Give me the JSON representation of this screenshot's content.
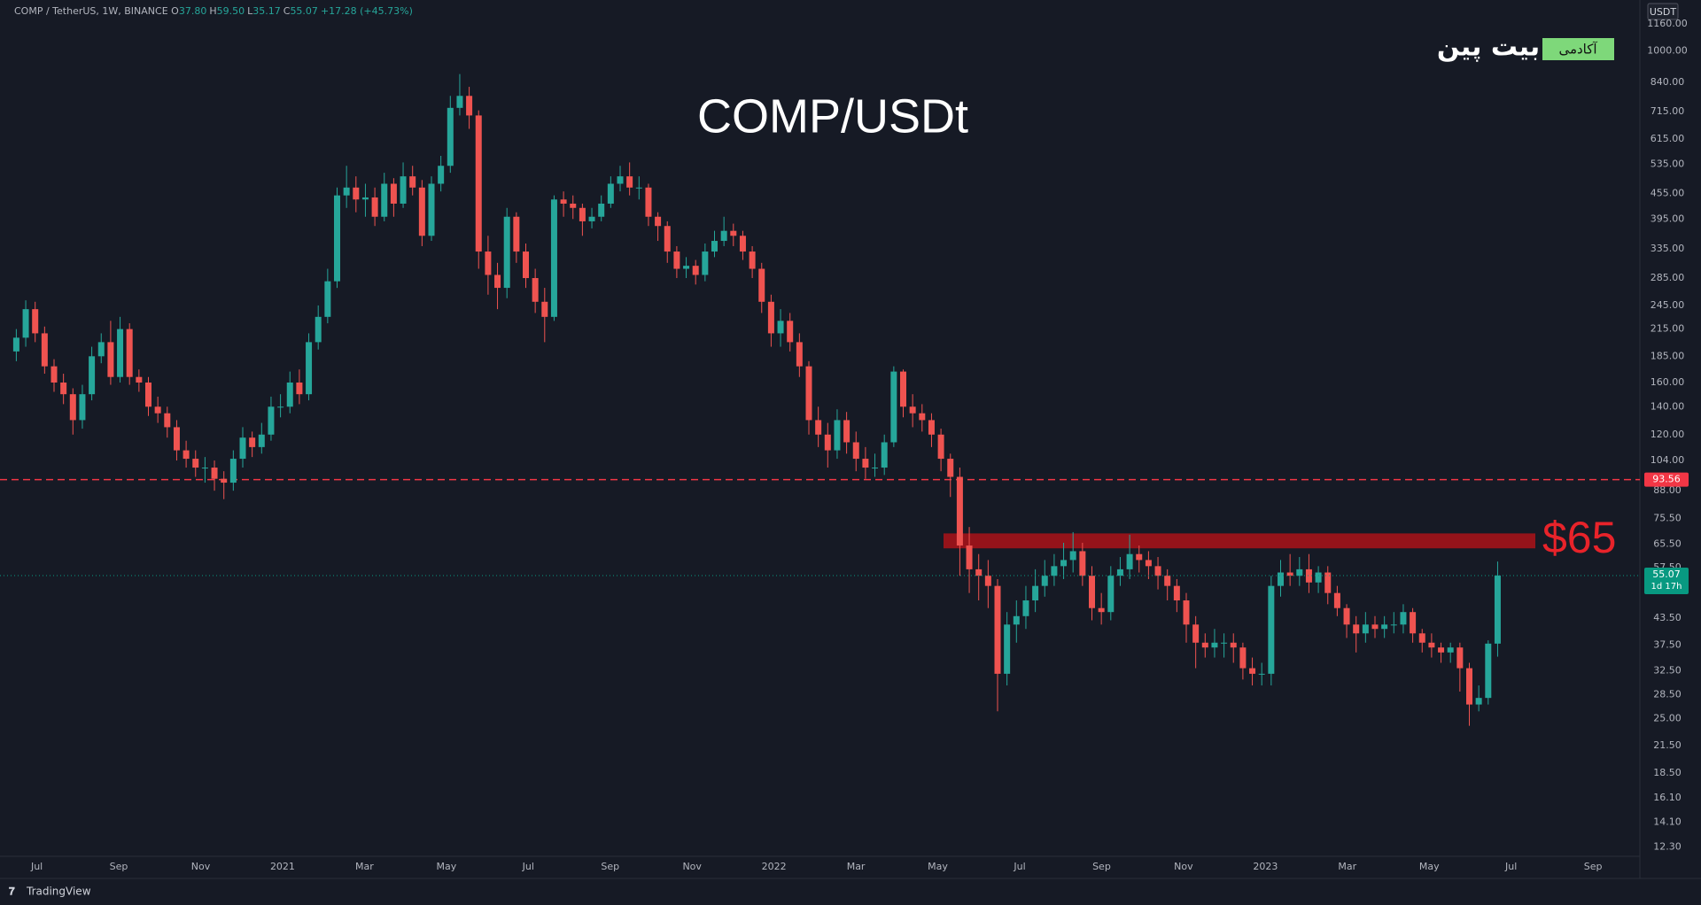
{
  "header": {
    "symbol": "COMP / TetherUS, 1W, BINANCE",
    "quote": [
      {
        "label": "O",
        "value": "37.80"
      },
      {
        "label": "H",
        "value": "59.50"
      },
      {
        "label": "L",
        "value": "35.17"
      },
      {
        "label": "C",
        "value": "55.07"
      }
    ],
    "change": "+17.28 (+45.73%)"
  },
  "logo": {
    "academy": "آکادمی",
    "brand": "بیت پین"
  },
  "footer": {
    "brand": "TradingView"
  },
  "chart_data": {
    "type": "candlestick",
    "title": "COMP/USDt",
    "currency_label": "USDT",
    "log": true,
    "grid": false,
    "up_color": "#26a69a",
    "down_color": "#ef5350",
    "ylim": [
      11.67,
      1325
    ],
    "yticks": [
      {
        "value": 1160,
        "label": "1160.00"
      },
      {
        "value": 1000,
        "label": "1000.00"
      },
      {
        "value": 840,
        "label": "840.00"
      },
      {
        "value": 715,
        "label": "715.00"
      },
      {
        "value": 615,
        "label": "615.00"
      },
      {
        "value": 535,
        "label": "535.00"
      },
      {
        "value": 455,
        "label": "455.00"
      },
      {
        "value": 395,
        "label": "395.00"
      },
      {
        "value": 335,
        "label": "335.00"
      },
      {
        "value": 285,
        "label": "285.00"
      },
      {
        "value": 245,
        "label": "245.00"
      },
      {
        "value": 215,
        "label": "215.00"
      },
      {
        "value": 185,
        "label": "185.00"
      },
      {
        "value": 160,
        "label": "160.00"
      },
      {
        "value": 140,
        "label": "140.00"
      },
      {
        "value": 120,
        "label": "120.00"
      },
      {
        "value": 104,
        "label": "104.00"
      },
      {
        "value": 88,
        "label": "88.00"
      },
      {
        "value": 75.5,
        "label": "75.50"
      },
      {
        "value": 65.5,
        "label": "65.50"
      },
      {
        "value": 57.5,
        "label": "57.50"
      },
      {
        "value": 43.5,
        "label": "43.50"
      },
      {
        "value": 37.5,
        "label": "37.50"
      },
      {
        "value": 32.5,
        "label": "32.50"
      },
      {
        "value": 28.5,
        "label": "28.50"
      },
      {
        "value": 25,
        "label": "25.00"
      },
      {
        "value": 21.5,
        "label": "21.50"
      },
      {
        "value": 18.5,
        "label": "18.50"
      },
      {
        "value": 16.1,
        "label": "16.10"
      },
      {
        "value": 14.1,
        "label": "14.10"
      },
      {
        "value": 12.3,
        "label": "12.30"
      }
    ],
    "x_labels": [
      "Jul",
      "Sep",
      "Nov",
      "2021",
      "Mar",
      "May",
      "Jul",
      "Sep",
      "Nov",
      "2022",
      "Mar",
      "May",
      "Jul",
      "Sep",
      "Nov",
      "2023",
      "Mar",
      "May",
      "Jul",
      "Sep"
    ],
    "open": [
      190,
      205,
      240,
      210,
      175,
      160,
      150,
      130,
      150,
      185,
      200,
      165,
      215,
      165,
      160,
      140,
      135,
      125,
      110,
      105,
      100,
      100,
      94,
      92,
      105,
      118,
      112,
      120,
      140,
      140,
      160,
      150,
      200,
      230,
      280,
      450,
      470,
      440,
      445,
      400,
      480,
      430,
      500,
      470,
      360,
      480,
      530,
      730,
      780,
      700,
      330,
      290,
      270,
      400,
      330,
      285,
      250,
      230,
      440,
      430,
      420,
      390,
      400,
      430,
      480,
      500,
      470,
      470,
      400,
      380,
      330,
      300,
      305,
      290,
      330,
      350,
      370,
      360,
      330,
      300,
      250,
      210,
      225,
      200,
      175,
      130,
      120,
      110,
      130,
      115,
      105,
      100,
      100,
      115,
      170,
      140,
      135,
      130,
      120,
      105,
      95,
      65,
      57,
      55,
      52,
      32,
      42,
      44,
      48,
      52,
      55,
      58,
      60,
      63,
      55,
      46,
      45,
      55,
      57,
      62,
      60,
      58,
      55,
      52,
      48,
      42,
      38,
      37,
      38,
      38,
      37,
      33,
      32,
      32,
      52,
      56,
      55,
      57,
      53,
      56,
      50,
      46,
      42,
      40,
      42,
      41,
      42,
      42,
      45,
      40,
      38,
      37,
      36,
      37,
      33,
      27,
      28,
      37.8
    ],
    "high": [
      215,
      252,
      250,
      218,
      182,
      168,
      155,
      158,
      195,
      210,
      225,
      230,
      222,
      172,
      165,
      148,
      140,
      130,
      116,
      110,
      106,
      104,
      98,
      110,
      125,
      122,
      128,
      148,
      150,
      170,
      172,
      210,
      245,
      300,
      470,
      530,
      500,
      480,
      470,
      510,
      495,
      540,
      530,
      490,
      500,
      560,
      780,
      880,
      820,
      720,
      360,
      310,
      420,
      410,
      345,
      300,
      270,
      450,
      460,
      450,
      430,
      420,
      450,
      500,
      530,
      540,
      500,
      480,
      410,
      390,
      340,
      320,
      315,
      345,
      370,
      400,
      385,
      370,
      340,
      310,
      260,
      240,
      235,
      210,
      180,
      140,
      128,
      138,
      136,
      122,
      112,
      108,
      120,
      175,
      172,
      150,
      142,
      135,
      124,
      108,
      100,
      72,
      62,
      60,
      54,
      45,
      48,
      52,
      57,
      60,
      62,
      66,
      70,
      66,
      58,
      50,
      58,
      61,
      69,
      65,
      63,
      61,
      57,
      54,
      50,
      44,
      40,
      41,
      40,
      40,
      38,
      35,
      34,
      55,
      60,
      62,
      61,
      62,
      58,
      58,
      52,
      47,
      44,
      45,
      44,
      44,
      45,
      47,
      46,
      41,
      40,
      38,
      38,
      38,
      34,
      30,
      38.5,
      59.5
    ],
    "low": [
      180,
      195,
      200,
      168,
      152,
      142,
      120,
      124,
      145,
      178,
      158,
      160,
      158,
      152,
      133,
      128,
      118,
      104,
      100,
      95,
      92,
      88,
      84,
      88,
      100,
      106,
      108,
      116,
      132,
      135,
      142,
      145,
      192,
      222,
      270,
      420,
      410,
      400,
      380,
      390,
      400,
      420,
      450,
      340,
      350,
      460,
      510,
      700,
      650,
      300,
      260,
      240,
      255,
      310,
      270,
      235,
      200,
      225,
      400,
      395,
      360,
      375,
      390,
      420,
      460,
      450,
      440,
      380,
      350,
      310,
      285,
      285,
      275,
      280,
      320,
      340,
      340,
      315,
      285,
      235,
      195,
      195,
      190,
      165,
      120,
      112,
      100,
      105,
      108,
      98,
      94,
      95,
      96,
      112,
      132,
      125,
      122,
      112,
      98,
      85,
      55,
      50,
      48,
      46,
      26,
      30,
      38,
      41,
      45,
      49,
      52,
      54,
      56,
      52,
      43,
      42,
      43,
      52,
      54,
      56,
      54,
      51,
      48,
      45,
      38,
      33,
      35,
      35,
      35,
      34,
      31,
      30,
      30,
      30,
      49,
      52,
      52,
      50,
      50,
      47,
      44,
      39,
      36,
      38,
      39,
      39,
      40,
      40,
      38,
      36,
      35,
      34,
      34,
      29,
      24,
      26,
      27,
      35.17
    ],
    "close": [
      205,
      240,
      210,
      175,
      160,
      150,
      130,
      150,
      185,
      200,
      165,
      215,
      165,
      160,
      140,
      135,
      125,
      110,
      105,
      100,
      100,
      94,
      92,
      105,
      118,
      112,
      120,
      140,
      140,
      160,
      150,
      200,
      230,
      280,
      450,
      470,
      440,
      445,
      400,
      480,
      430,
      500,
      470,
      360,
      480,
      530,
      730,
      780,
      700,
      330,
      290,
      270,
      400,
      330,
      285,
      250,
      230,
      440,
      430,
      420,
      390,
      400,
      430,
      480,
      500,
      470,
      470,
      400,
      380,
      330,
      300,
      305,
      290,
      330,
      350,
      370,
      360,
      330,
      300,
      250,
      210,
      225,
      200,
      175,
      130,
      120,
      110,
      130,
      115,
      105,
      100,
      100,
      115,
      170,
      140,
      135,
      130,
      120,
      105,
      95,
      65,
      57,
      55,
      52,
      32,
      42,
      44,
      48,
      52,
      55,
      58,
      60,
      63,
      55,
      46,
      45,
      55,
      57,
      62,
      60,
      58,
      55,
      52,
      48,
      42,
      38,
      37,
      38,
      38,
      37,
      33,
      32,
      32,
      52,
      56,
      55,
      57,
      53,
      56,
      50,
      46,
      42,
      40,
      42,
      41,
      42,
      42,
      45,
      40,
      38,
      37,
      36,
      37,
      33,
      27,
      28,
      37.8,
      55.07
    ],
    "hline": {
      "value": 93.56,
      "label": "93.56",
      "color": "#f23645"
    },
    "last_price": {
      "value": 55.07,
      "label": "55.07",
      "countdown": "1d 17h",
      "color": "#089981"
    },
    "zone": {
      "range": [
        64,
        69.5
      ],
      "color": "#a3131a",
      "label": "$65",
      "label_color": "#e8232a"
    }
  }
}
